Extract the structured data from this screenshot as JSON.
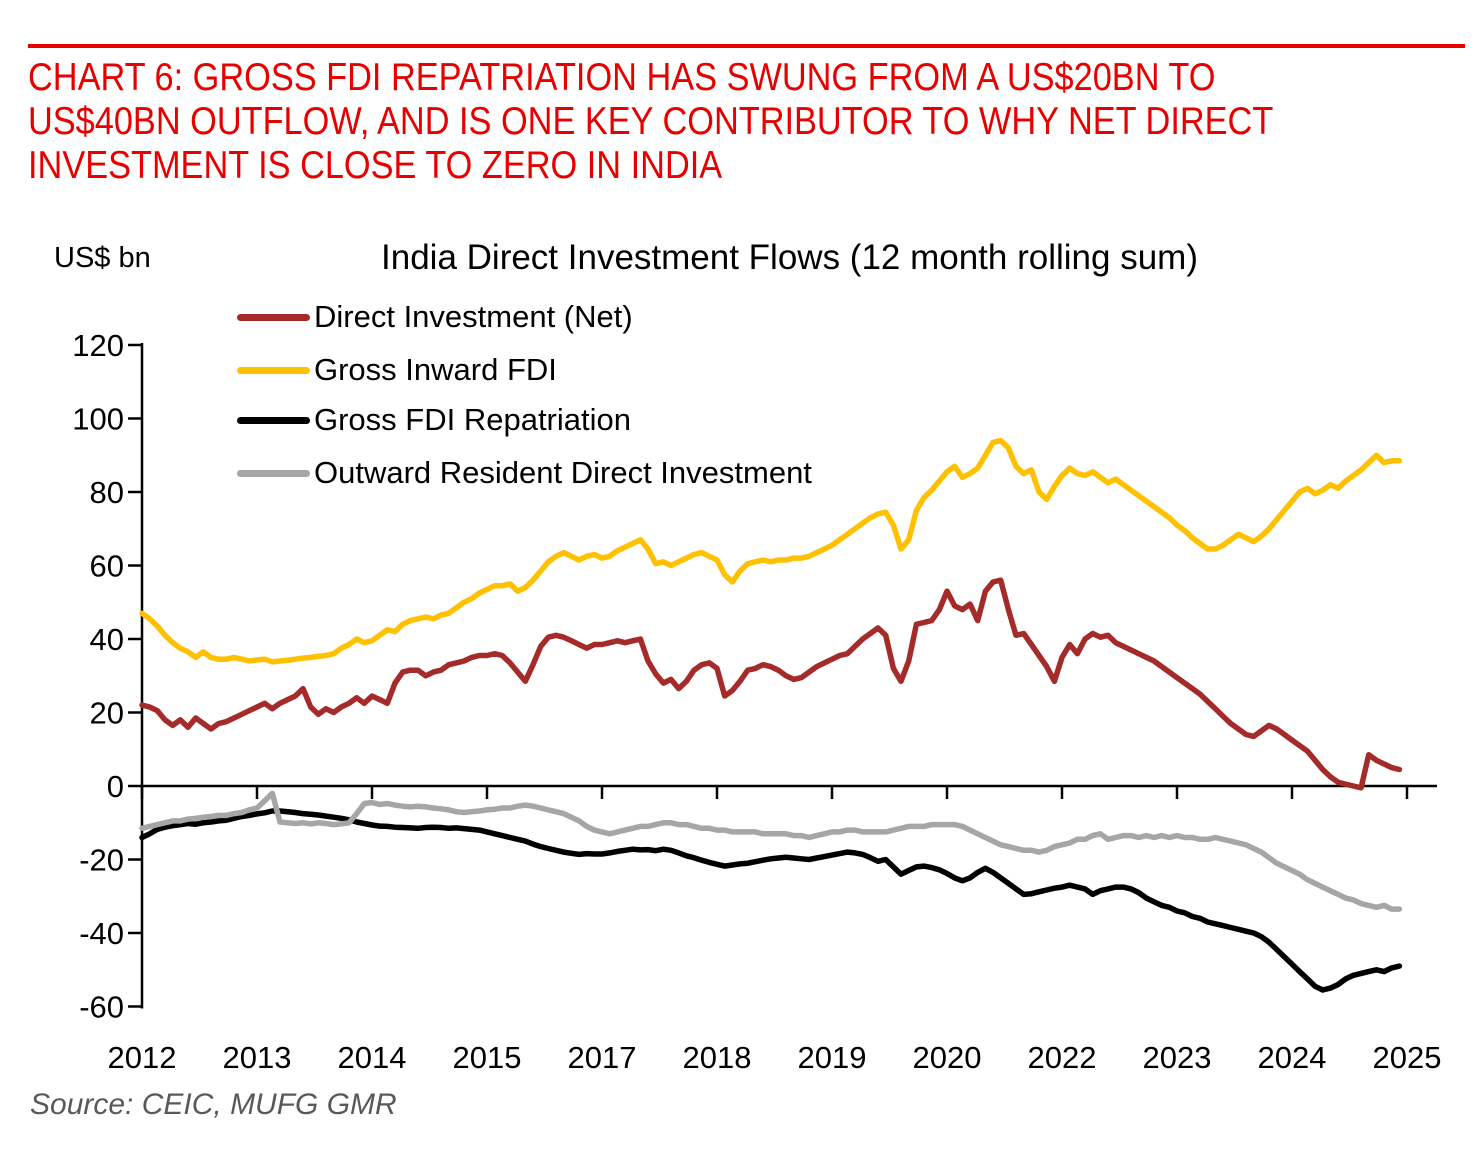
{
  "header": {
    "accent_color": "#E60000",
    "title_lines": [
      "CHART 6: GROSS FDI REPATRIATION HAS SWUNG FROM A US$20BN TO",
      "US$40BN OUTFLOW, AND IS ONE KEY CONTRIBUTOR TO WHY NET DIRECT",
      "INVESTMENT IS CLOSE TO ZERO IN INDIA"
    ]
  },
  "source": {
    "text": "Source: CEIC, MUFG GMR"
  },
  "chart_data": {
    "type": "line",
    "title": "India Direct Investment Flows (12 month rolling sum)",
    "ylabel": "US$ bn",
    "xlabel": "",
    "ylim": [
      -60,
      120
    ],
    "yticks": [
      120,
      100,
      80,
      60,
      40,
      20,
      0,
      -20,
      -40,
      -60
    ],
    "grid": false,
    "legend_position": "upper-left-inside",
    "x_frequency": "monthly",
    "x_start": "2012-01",
    "x_end": "2025-09",
    "x_tick_labels": [
      "2012",
      "2013",
      "2014",
      "2015",
      "2017",
      "2018",
      "2019",
      "2020",
      "2022",
      "2023",
      "2024",
      "2025"
    ],
    "axis_color": "#000000",
    "series": [
      {
        "name": "Direct Investment (Net)",
        "color": "#A52A2A",
        "values": [
          22,
          21.5,
          20.5,
          18,
          16.5,
          18,
          16,
          18.5,
          17,
          15.5,
          17,
          17.5,
          18.5,
          19.5,
          20.5,
          21.5,
          22.5,
          21,
          22.5,
          23.5,
          24.5,
          26.5,
          21.5,
          19.5,
          21,
          20,
          21.5,
          22.5,
          24,
          22.5,
          24.5,
          23.5,
          22.5,
          28,
          31,
          31.5,
          31.5,
          30,
          31,
          31.5,
          33,
          33.5,
          34,
          35,
          35.5,
          35.5,
          36,
          35.5,
          33.5,
          31,
          28.5,
          33,
          38,
          40.5,
          41,
          40.5,
          39.5,
          38.5,
          37.5,
          38.5,
          38.5,
          39,
          39.5,
          39,
          39.5,
          40,
          34,
          30.5,
          28,
          29,
          26.5,
          28.5,
          31.5,
          33,
          33.5,
          32,
          24.5,
          26,
          28.5,
          31.5,
          32,
          33,
          32.5,
          31.5,
          30,
          29,
          29.5,
          31,
          32.5,
          33.5,
          34.5,
          35.5,
          36,
          38,
          40,
          41.5,
          43,
          41,
          32,
          28.5,
          34,
          44,
          44.5,
          45,
          48,
          53,
          49,
          48,
          49.5,
          45,
          53,
          55.5,
          56,
          48,
          41,
          41.5,
          38.5,
          35.5,
          32.5,
          28.5,
          35,
          38.5,
          36,
          40,
          41.5,
          40.5,
          41,
          39,
          38,
          37,
          36,
          35,
          34,
          32.5,
          31,
          29.5,
          28,
          26.5,
          25,
          23,
          21,
          19,
          17,
          15.5,
          14,
          13.5,
          15,
          16.5,
          15.5,
          14,
          12.5,
          11,
          9.5,
          7,
          4.5,
          2.5,
          1,
          0.5,
          0,
          -0.5,
          8.5,
          7,
          6,
          5,
          4.5
        ]
      },
      {
        "name": "Gross Inward FDI",
        "color": "#FFC000",
        "values": [
          47,
          45.5,
          43.5,
          41,
          39,
          37.5,
          36.5,
          35,
          36.5,
          35,
          34.5,
          34.5,
          35,
          34.5,
          34,
          34.3,
          34.5,
          33.8,
          34,
          34.2,
          34.5,
          34.8,
          35,
          35.3,
          35.5,
          36,
          37.5,
          38.5,
          40,
          39,
          39.5,
          41,
          42.5,
          42,
          44,
          45,
          45.5,
          46,
          45.5,
          46.5,
          47,
          48.5,
          50,
          51,
          52.5,
          53.5,
          54.5,
          54.5,
          55,
          53,
          54,
          56,
          58.5,
          61,
          62.5,
          63.5,
          62.5,
          61.5,
          62.5,
          63,
          62,
          62.5,
          64,
          65,
          66,
          67,
          64.5,
          60.5,
          61,
          60,
          61,
          62,
          63,
          63.5,
          62.5,
          61.5,
          57.5,
          55.5,
          58.5,
          60.5,
          61,
          61.5,
          61,
          61.5,
          61.5,
          62,
          62,
          62.5,
          63.5,
          64.5,
          65.5,
          67,
          68.5,
          70,
          71.5,
          73,
          74,
          74.5,
          71,
          64.5,
          67,
          75,
          78.5,
          80.5,
          83,
          85.5,
          87,
          84,
          85,
          86.5,
          90,
          93.5,
          94,
          92,
          87,
          85,
          86,
          80,
          78,
          81.5,
          84.5,
          86.5,
          85,
          84.5,
          85.5,
          84,
          82.5,
          83.5,
          82,
          80.5,
          79,
          77.5,
          76,
          74.5,
          73,
          71,
          69.5,
          67.5,
          66,
          64.5,
          64.5,
          65.5,
          67,
          68.5,
          67.5,
          66.5,
          68,
          70,
          72.5,
          75,
          77.5,
          80,
          81,
          79.5,
          80.5,
          82,
          81,
          83,
          84.5,
          86,
          88,
          90,
          88,
          88.5,
          88.5
        ]
      },
      {
        "name": "Gross FDI Repatriation",
        "color": "#000000",
        "values": [
          -14,
          -13,
          -11.8,
          -11.2,
          -10.8,
          -10.5,
          -10.2,
          -10.4,
          -10,
          -9.8,
          -9.5,
          -9.3,
          -8.8,
          -8.3,
          -8,
          -7.6,
          -7.3,
          -6.8,
          -6.8,
          -7,
          -7.2,
          -7.5,
          -7.7,
          -7.9,
          -8.2,
          -8.5,
          -8.8,
          -9.2,
          -9.8,
          -10.2,
          -10.6,
          -10.9,
          -11,
          -11.2,
          -11.3,
          -11.4,
          -11.5,
          -11.3,
          -11.2,
          -11.3,
          -11.5,
          -11.4,
          -11.6,
          -11.8,
          -12,
          -12.5,
          -13,
          -13.5,
          -14,
          -14.5,
          -15,
          -15.8,
          -16.5,
          -17,
          -17.5,
          -18,
          -18.3,
          -18.6,
          -18.4,
          -18.5,
          -18.5,
          -18.2,
          -17.8,
          -17.5,
          -17.2,
          -17.4,
          -17.3,
          -17.6,
          -17.2,
          -17.5,
          -18.2,
          -19,
          -19.5,
          -20.2,
          -20.8,
          -21.3,
          -21.8,
          -21.5,
          -21.2,
          -21,
          -20.6,
          -20.2,
          -19.8,
          -19.6,
          -19.4,
          -19.6,
          -19.8,
          -20,
          -19.6,
          -19.2,
          -18.8,
          -18.4,
          -18,
          -18.2,
          -18.6,
          -19.5,
          -20.5,
          -20,
          -22,
          -24,
          -23,
          -22,
          -21.8,
          -22.2,
          -22.8,
          -23.8,
          -25,
          -25.8,
          -25,
          -23.5,
          -22.4,
          -23.5,
          -25,
          -26.5,
          -28,
          -29.5,
          -29.3,
          -28.8,
          -28.3,
          -27.8,
          -27.5,
          -27,
          -27.5,
          -28,
          -29.5,
          -28.5,
          -28,
          -27.5,
          -27.5,
          -28,
          -29,
          -30.5,
          -31.5,
          -32.5,
          -33,
          -34,
          -34.5,
          -35.5,
          -36,
          -37,
          -37.5,
          -38,
          -38.5,
          -39,
          -39.5,
          -40,
          -41,
          -42.5,
          -44.5,
          -46.5,
          -48.5,
          -50.5,
          -52.5,
          -54.5,
          -55.5,
          -55,
          -54,
          -52.5,
          -51.5,
          -51,
          -50.5,
          -50,
          -50.5,
          -49.5,
          -49
        ]
      },
      {
        "name": "Outward Resident Direct Investment",
        "color": "#A6A6A6",
        "values": [
          -11.5,
          -11,
          -10.5,
          -10,
          -9.5,
          -9.5,
          -9,
          -8.8,
          -8.5,
          -8.3,
          -8,
          -8,
          -7.5,
          -7.2,
          -6.5,
          -6,
          -4,
          -2,
          -9.8,
          -10,
          -10.2,
          -10,
          -10.3,
          -10,
          -10.2,
          -10.5,
          -10.3,
          -10,
          -7.5,
          -4.8,
          -4.5,
          -5,
          -4.8,
          -5.2,
          -5.5,
          -5.7,
          -5.5,
          -5.7,
          -6,
          -6.2,
          -6.5,
          -7,
          -7.2,
          -7,
          -6.8,
          -6.5,
          -6.3,
          -6,
          -6,
          -5.5,
          -5.2,
          -5.5,
          -6,
          -6.5,
          -7,
          -7.5,
          -8.5,
          -9.5,
          -11,
          -12,
          -12.5,
          -13,
          -12.5,
          -12,
          -11.5,
          -11,
          -11,
          -10.5,
          -10,
          -10,
          -10.5,
          -10.5,
          -11,
          -11.5,
          -11.5,
          -12,
          -12,
          -12.5,
          -12.5,
          -12.5,
          -12.5,
          -13,
          -13,
          -13,
          -13,
          -13.5,
          -13.5,
          -14,
          -13.5,
          -13,
          -12.5,
          -12.5,
          -12,
          -12,
          -12.5,
          -12.5,
          -12.5,
          -12.5,
          -12,
          -11.5,
          -11,
          -11,
          -11,
          -10.5,
          -10.5,
          -10.5,
          -10.5,
          -11,
          -12,
          -13,
          -14,
          -15,
          -16,
          -16.5,
          -17,
          -17.5,
          -17.5,
          -18,
          -17.5,
          -16.5,
          -16,
          -15.5,
          -14.5,
          -14.5,
          -13.5,
          -13,
          -14.5,
          -14,
          -13.5,
          -13.5,
          -14,
          -13.5,
          -14,
          -13.5,
          -14,
          -13.5,
          -14,
          -14,
          -14.5,
          -14.5,
          -14,
          -14.5,
          -15,
          -15.5,
          -16,
          -17,
          -18,
          -19.5,
          -21,
          -22,
          -23,
          -24,
          -25.5,
          -26.5,
          -27.5,
          -28.5,
          -29.5,
          -30.5,
          -31,
          -32,
          -32.5,
          -33,
          -32.5,
          -33.5,
          -33.5
        ]
      }
    ]
  }
}
